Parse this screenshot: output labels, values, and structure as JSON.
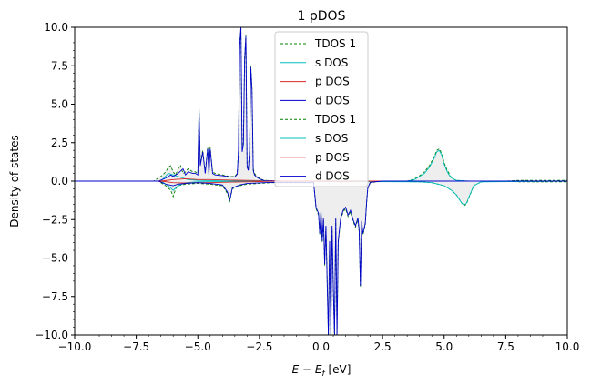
{
  "chart_data": {
    "type": "line",
    "title": "1 pDOS",
    "xlabel": "E − E_f [eV]",
    "xlabel_main": "E − E",
    "xlabel_sub": "f",
    "xlabel_unit": " [eV]",
    "ylabel": "Density of states",
    "xlim": [
      -10,
      10
    ],
    "ylim": [
      -10,
      10
    ],
    "xticks": [
      -10,
      -7.5,
      -5,
      -2.5,
      0,
      2.5,
      5,
      7.5,
      10
    ],
    "xtick_labels": [
      "−10.0",
      "−7.5",
      "−5.0",
      "−2.5",
      "0.0",
      "2.5",
      "5.0",
      "7.5",
      "10.0"
    ],
    "yticks": [
      -10,
      -7.5,
      -5,
      -2.5,
      0,
      2.5,
      5,
      7.5,
      10
    ],
    "ytick_labels": [
      "−10.0",
      "−7.5",
      "−5.0",
      "−2.5",
      "0.0",
      "2.5",
      "5.0",
      "7.5",
      "10.0"
    ],
    "grid": false,
    "legend_position": "top-center",
    "legend": [
      {
        "name": "TDOS 1",
        "color": "#008000",
        "dash": "dashed"
      },
      {
        "name": "s DOS",
        "color": "#00bfbf",
        "dash": "solid"
      },
      {
        "name": "p DOS",
        "color": "#d62728",
        "dash": "solid"
      },
      {
        "name": "d DOS",
        "color": "#0000cc",
        "dash": "solid"
      },
      {
        "name": "TDOS 1",
        "color": "#008000",
        "dash": "dashed"
      },
      {
        "name": "s DOS",
        "color": "#00bfbf",
        "dash": "solid"
      },
      {
        "name": "p DOS",
        "color": "#d62728",
        "dash": "solid"
      },
      {
        "name": "d DOS",
        "color": "#0000cc",
        "dash": "solid"
      }
    ],
    "series": [
      {
        "name": "TDOS 1",
        "color": "#008000",
        "dash": "dashed",
        "x": [
          -10,
          -6.8,
          -6.5,
          -6.3,
          -6.2,
          -6.1,
          -6.0,
          -5.9,
          -5.8,
          -5.7,
          -5.6,
          -5.5,
          -5.4,
          -5.3,
          -5.2,
          -5.1,
          -5.0,
          -4.95,
          -4.9,
          -4.8,
          -4.7,
          -4.6,
          -4.55,
          -4.5,
          -4.4,
          -4.3,
          -4.0,
          -3.7,
          -3.5,
          -3.4,
          -3.35,
          -3.3,
          -3.25,
          -3.2,
          -3.15,
          -3.1,
          -3.05,
          -3.0,
          -2.95,
          -2.9,
          -2.85,
          -2.8,
          -2.75,
          -2.7,
          -2.6,
          -2.5,
          -2.4,
          -2.3,
          -1.5,
          3.5,
          3.8,
          4.0,
          4.2,
          4.4,
          4.6,
          4.7,
          4.8,
          4.9,
          5.0,
          5.1,
          5.2,
          5.3,
          5.5,
          6.0,
          7.5,
          8.0,
          9.0,
          10
        ],
        "y": [
          0,
          0,
          0.3,
          0.6,
          0.9,
          1.0,
          0.6,
          0.4,
          0.8,
          1.0,
          0.5,
          0.6,
          0.8,
          0.7,
          0.6,
          0.6,
          0.5,
          4.7,
          1.2,
          2.0,
          0.6,
          2.2,
          0.5,
          2.2,
          0.6,
          0.5,
          0.4,
          0.3,
          0.3,
          0.5,
          2.0,
          9.0,
          10,
          2.0,
          2.5,
          8.0,
          9.5,
          1.0,
          0.8,
          2.0,
          7.5,
          6.0,
          0.8,
          0.5,
          0.3,
          0.2,
          0.1,
          0.05,
          0,
          0,
          0.15,
          0.35,
          0.6,
          1.0,
          1.6,
          2.0,
          2.1,
          1.8,
          1.2,
          0.8,
          0.5,
          0.2,
          0.05,
          0,
          0,
          0.05,
          0.05,
          0.05
        ]
      },
      {
        "name": "s DOS",
        "color": "#00bfbf",
        "dash": "solid",
        "x": [
          -10,
          -6.5,
          -6.2,
          -6.0,
          -5.8,
          -5.6,
          -5.4,
          -5.0,
          -4.0,
          -2.0,
          3.5,
          3.8,
          4.0,
          4.2,
          4.4,
          4.6,
          4.7,
          4.8,
          4.9,
          5.0,
          5.1,
          5.2,
          5.3,
          5.5,
          6.0,
          10
        ],
        "y": [
          0,
          0,
          0.5,
          0.4,
          0.3,
          0.2,
          0.1,
          0.05,
          0.02,
          0,
          0,
          0.1,
          0.3,
          0.5,
          0.9,
          1.5,
          1.9,
          2.0,
          1.7,
          1.1,
          0.7,
          0.4,
          0.2,
          0.05,
          0,
          0
        ]
      },
      {
        "name": "p DOS",
        "color": "#d62728",
        "dash": "solid",
        "x": [
          -10,
          -6.5,
          -6.0,
          -5.5,
          -5.0,
          -4.5,
          -4.0,
          -3.5,
          -3.0,
          -2.5,
          -2.0,
          10
        ],
        "y": [
          0,
          0,
          0.1,
          0.15,
          0.1,
          0.1,
          0.08,
          0.06,
          0.05,
          0.03,
          0,
          0
        ]
      },
      {
        "name": "d DOS",
        "color": "#0000cc",
        "dash": "solid",
        "x": [
          -10,
          -6.6,
          -6.3,
          -6.1,
          -6.0,
          -5.8,
          -5.6,
          -5.5,
          -5.4,
          -5.2,
          -5.1,
          -5.0,
          -4.95,
          -4.9,
          -4.8,
          -4.7,
          -4.6,
          -4.55,
          -4.5,
          -4.4,
          -4.3,
          -4.0,
          -3.7,
          -3.5,
          -3.4,
          -3.35,
          -3.3,
          -3.25,
          -3.2,
          -3.15,
          -3.1,
          -3.05,
          -3.0,
          -2.95,
          -2.9,
          -2.85,
          -2.8,
          -2.75,
          -2.7,
          -2.6,
          -2.5,
          -2.4,
          -2.3,
          -1.5,
          10
        ],
        "y": [
          0,
          0,
          0.2,
          0.4,
          0.3,
          0.5,
          0.8,
          0.4,
          0.6,
          0.5,
          0.5,
          0.4,
          4.6,
          1.0,
          1.9,
          0.5,
          2.1,
          0.4,
          2.1,
          0.5,
          0.4,
          0.35,
          0.28,
          0.28,
          0.45,
          1.9,
          8.8,
          10,
          1.9,
          2.4,
          7.9,
          9.4,
          0.9,
          0.7,
          1.9,
          7.4,
          5.9,
          0.7,
          0.4,
          0.25,
          0.15,
          0.08,
          0.04,
          0,
          0
        ]
      },
      {
        "name": "TDOS 1",
        "color": "#008000",
        "dash": "dashed",
        "x": [
          -10,
          -6.6,
          -6.3,
          -6.1,
          -6.0,
          -5.9,
          -5.8,
          -5.5,
          -5.0,
          -4.5,
          -4.0,
          -3.8,
          -3.7,
          -3.6,
          -3.3,
          -3.0,
          -2.0,
          -0.3,
          -0.2,
          -0.1,
          -0.05,
          0.0,
          0.05,
          0.1,
          0.15,
          0.2,
          0.3,
          0.35,
          0.4,
          0.45,
          0.5,
          0.55,
          0.6,
          0.65,
          0.7,
          0.8,
          0.9,
          1.0,
          1.1,
          1.2,
          1.3,
          1.4,
          1.5,
          1.55,
          1.6,
          1.65,
          1.7,
          1.75,
          1.8,
          1.85,
          1.9,
          2.0,
          2.5,
          4.0,
          4.5,
          5.0,
          5.3,
          5.5,
          5.7,
          5.8,
          5.9,
          6.0,
          6.2,
          6.5,
          7.5,
          8.0,
          9.0,
          10
        ],
        "y": [
          0,
          0,
          -0.3,
          -0.6,
          -1.0,
          -0.5,
          -0.3,
          -0.2,
          -0.15,
          -0.2,
          -0.3,
          -0.8,
          -1.3,
          -0.5,
          -0.3,
          -0.2,
          -0.1,
          -0.1,
          -1.8,
          -2.2,
          -3.5,
          -2.0,
          -4.0,
          -2.5,
          -5.5,
          -3.0,
          -10,
          -4.0,
          -10,
          -3.0,
          -7.0,
          -10,
          -2.5,
          -10,
          -4.0,
          -2.5,
          -2.0,
          -1.8,
          -2.3,
          -2.0,
          -2.6,
          -3.0,
          -2.5,
          -3.3,
          -6.9,
          -2.7,
          -3.5,
          -3.2,
          -2.8,
          -1.5,
          -0.5,
          -0.1,
          0,
          -0.05,
          -0.1,
          -0.3,
          -0.6,
          -0.9,
          -1.4,
          -1.6,
          -1.5,
          -1.1,
          -0.3,
          -0.05,
          0,
          -0.05,
          -0.05,
          -0.05
        ]
      },
      {
        "name": "s DOS",
        "color": "#00bfbf",
        "dash": "solid",
        "x": [
          -10,
          -6.5,
          -6.2,
          -6.0,
          -5.8,
          -5.5,
          -5.0,
          -2.0,
          4.0,
          4.5,
          5.0,
          5.3,
          5.5,
          5.7,
          5.8,
          5.9,
          6.0,
          6.2,
          6.5,
          10
        ],
        "y": [
          0,
          0,
          -0.3,
          -0.6,
          -0.3,
          -0.1,
          -0.05,
          0,
          -0.05,
          -0.1,
          -0.3,
          -0.6,
          -0.9,
          -1.4,
          -1.55,
          -1.45,
          -1.05,
          -0.3,
          -0.05,
          0
        ]
      },
      {
        "name": "p DOS",
        "color": "#d62728",
        "dash": "solid",
        "x": [
          -10,
          -6.5,
          -6.0,
          -5.5,
          -5.0,
          -4.5,
          -4.0,
          -3.5,
          -3.0,
          -2.5,
          -2.0,
          10
        ],
        "y": [
          0,
          0,
          -0.1,
          -0.12,
          -0.1,
          -0.1,
          -0.08,
          -0.06,
          -0.05,
          -0.03,
          0,
          0
        ]
      },
      {
        "name": "d DOS",
        "color": "#0000cc",
        "dash": "solid",
        "x": [
          -10,
          -6.6,
          -6.3,
          -6.0,
          -5.8,
          -5.5,
          -5.0,
          -4.5,
          -4.0,
          -3.8,
          -3.7,
          -3.6,
          -3.3,
          -3.0,
          -2.0,
          -0.3,
          -0.2,
          -0.1,
          -0.05,
          0.0,
          0.05,
          0.1,
          0.15,
          0.2,
          0.3,
          0.35,
          0.4,
          0.45,
          0.5,
          0.55,
          0.6,
          0.65,
          0.7,
          0.8,
          0.9,
          1.0,
          1.1,
          1.2,
          1.3,
          1.4,
          1.5,
          1.55,
          1.6,
          1.65,
          1.7,
          1.75,
          1.8,
          1.85,
          1.9,
          2.0,
          2.5,
          10
        ],
        "y": [
          0,
          0,
          -0.2,
          -0.3,
          -0.2,
          -0.15,
          -0.1,
          -0.15,
          -0.25,
          -0.7,
          -1.2,
          -0.45,
          -0.25,
          -0.15,
          -0.08,
          -0.1,
          -1.7,
          -2.1,
          -3.4,
          -1.9,
          -3.9,
          -2.4,
          -5.4,
          -2.9,
          -10,
          -3.9,
          -10,
          -2.9,
          -6.9,
          -10,
          -2.4,
          -10,
          -3.9,
          -2.4,
          -1.9,
          -1.7,
          -2.2,
          -1.9,
          -2.5,
          -2.9,
          -2.4,
          -3.2,
          -6.8,
          -2.6,
          -3.4,
          -3.1,
          -2.7,
          -1.4,
          -0.45,
          -0.08,
          0,
          0
        ]
      }
    ]
  }
}
